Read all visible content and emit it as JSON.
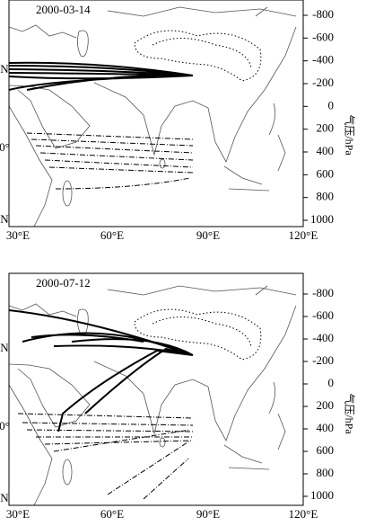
{
  "panels": [
    {
      "date": "2000-03-14",
      "x_labels": [
        "30°E",
        "60°E",
        "90°E",
        "120°E"
      ],
      "left_labels": [
        "N",
        "0°",
        "N"
      ],
      "pressure_labels": [
        "-800",
        "-600",
        "-400",
        "-200",
        "0",
        "200",
        "400",
        "600",
        "800",
        "1000"
      ],
      "axis_label": "气压/hPa"
    },
    {
      "date": "2000-07-12",
      "x_labels": [
        "30°E",
        "60°E",
        "90°E",
        "120°E"
      ],
      "left_labels": [
        "N",
        "0°",
        "N"
      ],
      "pressure_labels": [
        "-800",
        "-600",
        "-400",
        "-200",
        "0",
        "200",
        "400",
        "600",
        "800",
        "1000"
      ],
      "axis_label": "气压/hPa"
    }
  ]
}
